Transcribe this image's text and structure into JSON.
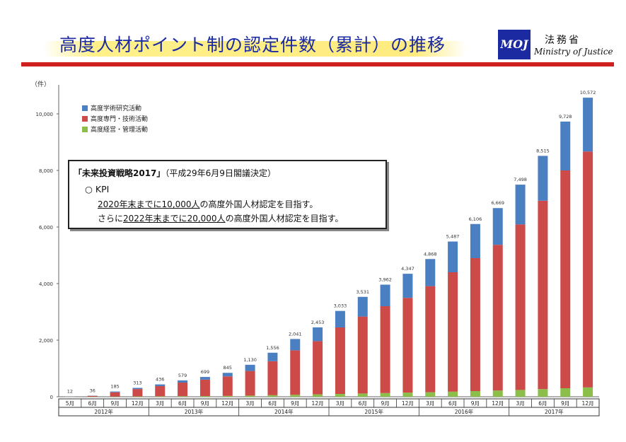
{
  "header": {
    "title": "高度人材ポイント制の認定件数（累計）の推移",
    "logo_text": "MOJ",
    "ministry_jp": "法務省",
    "ministry_en": "Ministry of Justice"
  },
  "kpi": {
    "heading": "「未来投資戦略2017」",
    "heading_note": "（平成29年6月9日閣議決定）",
    "label": "○ KPI",
    "line1_a": "2020年末までに",
    "line1_b": "10,000人",
    "line1_c": "の高度外国人材認定を目指す。",
    "line2_a": "さらに",
    "line2_b": "2022年末までに",
    "line2_c": "20,000人",
    "line2_d": "の高度外国人材認定を目指す。"
  },
  "chart_data": {
    "type": "bar",
    "stacked": true,
    "yunit": "（件）",
    "ylim": [
      0,
      10500
    ],
    "yticks": [
      "0",
      "2,000",
      "4,000",
      "6,000",
      "8,000",
      "10,000"
    ],
    "ytick_values": [
      0,
      2000,
      4000,
      6000,
      8000,
      10000
    ],
    "grid": false,
    "legend_position": "top-left",
    "categories": [
      "5月",
      "6月",
      "9月",
      "12月",
      "3月",
      "6月",
      "9月",
      "12月",
      "3月",
      "6月",
      "9月",
      "12月",
      "3月",
      "6月",
      "9月",
      "12月",
      "3月",
      "6月",
      "9月",
      "12月",
      "3月",
      "6月",
      "9月",
      "12月"
    ],
    "years": [
      {
        "label": "2012年",
        "count": 4
      },
      {
        "label": "2013年",
        "count": 4
      },
      {
        "label": "2014年",
        "count": 4
      },
      {
        "label": "2015年",
        "count": 4
      },
      {
        "label": "2016年",
        "count": 4
      },
      {
        "label": "2017年",
        "count": 4
      }
    ],
    "totals": [
      12,
      36,
      185,
      313,
      436,
      579,
      699,
      845,
      1130,
      1556,
      2041,
      2453,
      3033,
      3531,
      3962,
      4347,
      4868,
      5487,
      6106,
      6669,
      7498,
      8515,
      9728,
      10572
    ],
    "total_labels": [
      "12",
      "36",
      "185",
      "313",
      "436",
      "579",
      "699",
      "845",
      "1,130",
      "1,556",
      "2,041",
      "2,453",
      "3,033",
      "3,531",
      "3,962",
      "4,347",
      "4,868",
      "5,487",
      "6,106",
      "6,669",
      "7,498",
      "8,515",
      "9,728",
      "10,572"
    ],
    "series": [
      {
        "name": "高度経営・管理活動",
        "color": "#8cbf4a",
        "values": [
          1,
          3,
          8,
          12,
          16,
          20,
          24,
          30,
          40,
          55,
          70,
          85,
          100,
          115,
          130,
          145,
          160,
          180,
          200,
          220,
          240,
          270,
          300,
          330
        ]
      },
      {
        "name": "高度専門・技術活動",
        "color": "#cc4a47",
        "values": [
          9,
          28,
          150,
          260,
          360,
          480,
          580,
          690,
          870,
          1200,
          1570,
          1880,
          2350,
          2720,
          3070,
          3350,
          3750,
          4220,
          4700,
          5150,
          5850,
          6660,
          7700,
          8340
        ]
      },
      {
        "name": "高度学術研究活動",
        "color": "#4a7fc2",
        "values": [
          2,
          5,
          27,
          41,
          60,
          79,
          95,
          125,
          220,
          301,
          401,
          488,
          583,
          696,
          762,
          852,
          958,
          1087,
          1206,
          1299,
          1408,
          1585,
          1728,
          1902
        ]
      }
    ]
  }
}
